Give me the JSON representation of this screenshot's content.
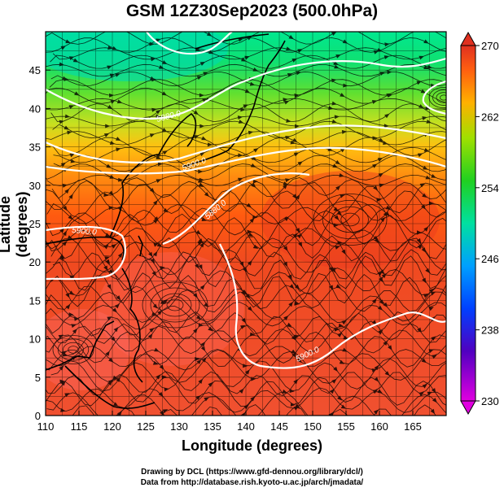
{
  "title": "GSM 12Z30Sep2023 (500.0hPa)",
  "xlabel": "Longitude (degrees)",
  "ylabel": "Latitude  (degrees)",
  "credits": [
    "Drawing by DCL (https://www.gfd-dennou.org/library/dcl/)",
    "Data from http://database.rish.kyoto-u.ac.jp/arch/jmadata/"
  ],
  "map": {
    "lon_range": [
      110,
      170
    ],
    "lat_range": [
      0,
      50
    ],
    "x_ticks": [
      "110",
      "115",
      "120",
      "125",
      "130",
      "135",
      "140",
      "145",
      "150",
      "155",
      "160",
      "165"
    ],
    "y_ticks": [
      "0",
      "5",
      "10",
      "15",
      "20",
      "25",
      "30",
      "35",
      "40",
      "45"
    ]
  },
  "colorbar": {
    "ticks": [
      "230",
      "238",
      "246",
      "254",
      "262",
      "270"
    ],
    "colors": [
      "#e600e6",
      "#2a00c8",
      "#0080ff",
      "#00e0e0",
      "#30d000",
      "#b8e000",
      "#ffb000",
      "#ff5000",
      "#e03020"
    ]
  },
  "contour_labels": [
    "5880.0",
    "5900.0",
    "5880.0",
    "5900.0",
    "5900.0",
    "5880.0"
  ]
}
